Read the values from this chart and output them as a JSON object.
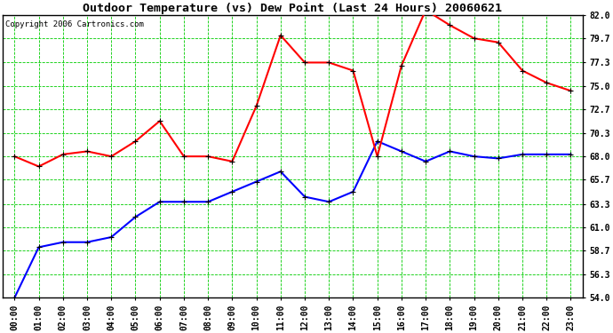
{
  "title": "Outdoor Temperature (vs) Dew Point (Last 24 Hours) 20060621",
  "copyright": "Copyright 2006 Cartronics.com",
  "hours": [
    "00:00",
    "01:00",
    "02:00",
    "03:00",
    "04:00",
    "05:00",
    "06:00",
    "07:00",
    "08:00",
    "09:00",
    "10:00",
    "11:00",
    "12:00",
    "13:00",
    "14:00",
    "15:00",
    "16:00",
    "17:00",
    "18:00",
    "19:00",
    "20:00",
    "21:00",
    "22:00",
    "23:00"
  ],
  "temp": [
    68.0,
    67.0,
    68.2,
    68.5,
    68.0,
    69.5,
    71.5,
    68.0,
    68.0,
    67.5,
    73.0,
    80.0,
    77.3,
    77.3,
    76.5,
    68.0,
    77.0,
    82.5,
    81.0,
    79.7,
    79.3,
    76.5,
    75.3,
    74.5
  ],
  "dew": [
    54.0,
    59.0,
    59.5,
    59.5,
    60.0,
    62.0,
    63.5,
    63.5,
    63.5,
    64.5,
    65.5,
    66.5,
    64.0,
    63.5,
    64.5,
    69.5,
    68.5,
    67.5,
    68.5,
    68.0,
    67.8,
    68.2,
    68.2,
    68.2
  ],
  "temp_color": "#ff0000",
  "dew_color": "#0000ff",
  "marker_color": "#000000",
  "bg_color": "#ffffff",
  "grid_color": "#00cc00",
  "border_color": "#000000",
  "ylim": [
    54.0,
    82.0
  ],
  "yticks": [
    54.0,
    56.3,
    58.7,
    61.0,
    63.3,
    65.7,
    68.0,
    70.3,
    72.7,
    75.0,
    77.3,
    79.7,
    82.0
  ],
  "title_fontsize": 9.5,
  "copyright_fontsize": 6.5,
  "tick_fontsize": 7
}
